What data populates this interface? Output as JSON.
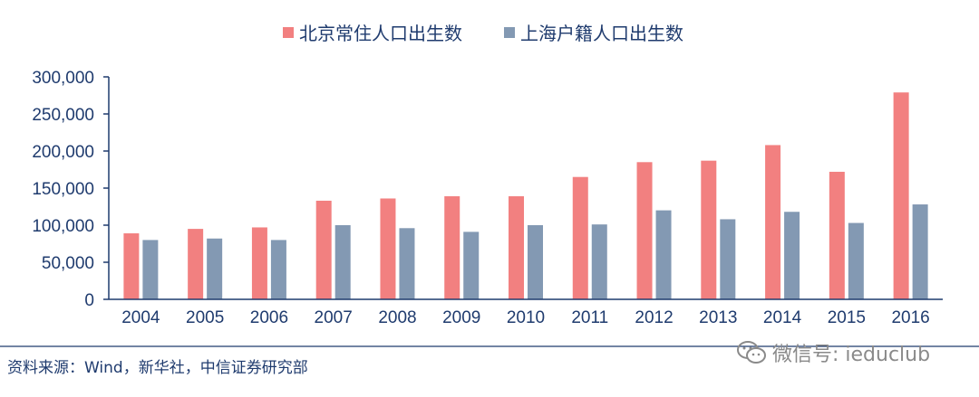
{
  "chart_data": {
    "type": "bar",
    "categories": [
      "2004",
      "2005",
      "2006",
      "2007",
      "2008",
      "2009",
      "2010",
      "2011",
      "2012",
      "2013",
      "2014",
      "2015",
      "2016"
    ],
    "series": [
      {
        "name": "北京常住人口出生数",
        "color": "#f28080",
        "values": [
          89000,
          95000,
          97000,
          133000,
          136000,
          139000,
          139000,
          165000,
          185000,
          187000,
          208000,
          172000,
          279000
        ]
      },
      {
        "name": "上海户籍人口出生数",
        "color": "#8399b3",
        "values": [
          80000,
          82000,
          80000,
          100000,
          96000,
          91000,
          100000,
          101000,
          120000,
          108000,
          118000,
          103000,
          128000
        ]
      }
    ],
    "yticks": [
      "0",
      "50,000",
      "100,000",
      "150,000",
      "200,000",
      "250,000",
      "300,000"
    ],
    "ylim": [
      0,
      300000
    ],
    "legend_position": "top-center",
    "grid": false
  },
  "footer": {
    "source": "资料来源：Wind，新华社，中信证券研究部"
  },
  "watermark": {
    "text": "微信号: ieduclub",
    "icon": "wechat-icon"
  },
  "colors": {
    "axis": "#1f3b6e",
    "text": "#1f3b6e"
  }
}
